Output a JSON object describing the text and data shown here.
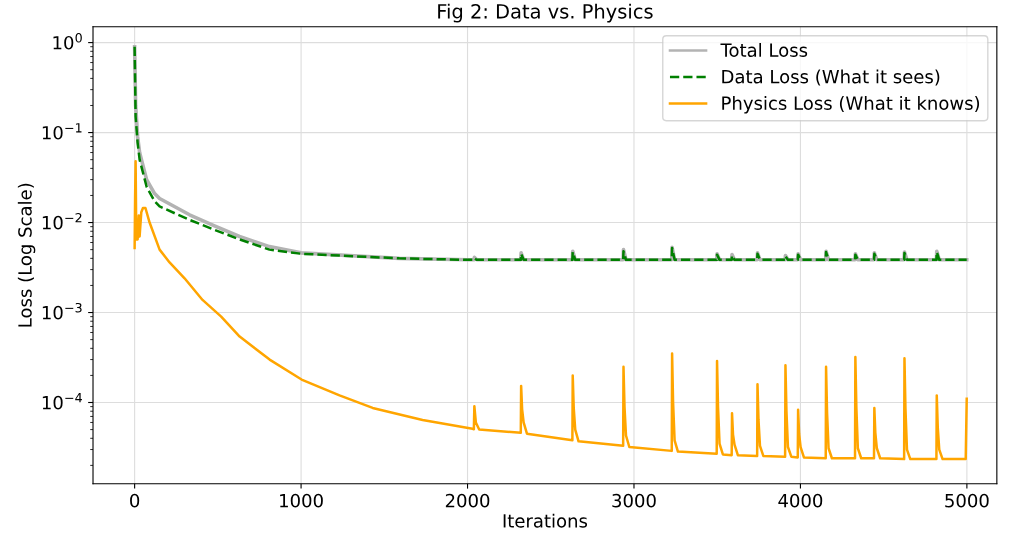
{
  "chart_data": {
    "type": "line",
    "title": "Fig 2: Data vs. Physics",
    "xlabel": "Iterations",
    "ylabel": "Loss (Log Scale)",
    "log": "y",
    "grid": true,
    "legend": "top right",
    "xlim": [
      -250,
      5180
    ],
    "xticks": [
      0,
      1000,
      2000,
      3000,
      4000,
      5000
    ],
    "ylim": [
      1.25e-05,
      1.5
    ],
    "yticks": [
      {
        "value": 0.0001,
        "label": "10$^{−4}$"
      },
      {
        "value": 0.001,
        "label": "10$^{−3}$"
      },
      {
        "value": 0.01,
        "label": "10$^{−2}$"
      },
      {
        "value": 0.1,
        "label": "10$^{−1}$"
      },
      {
        "value": 1,
        "label": "10$^{0}$"
      }
    ],
    "series": [
      {
        "name": "Total Loss",
        "color": "#b3b3b3",
        "line_style": "solid",
        "x": [
          0,
          6,
          18,
          30,
          72,
          120,
          150,
          330,
          480,
          630,
          810,
          1000,
          1590,
          2000,
          2039,
          2041,
          2056,
          2320,
          2322,
          2337,
          2630,
          2632,
          2647,
          2935,
          2937,
          2952,
          3227,
          3229,
          3244,
          3497,
          3499,
          3514,
          3587,
          3589,
          3604,
          3740,
          3742,
          3757,
          3908,
          3910,
          3925,
          3984,
          3986,
          4001,
          4152,
          4154,
          4169,
          4328,
          4330,
          4345,
          4442,
          4444,
          4459,
          4623,
          4625,
          4640,
          4817,
          4819,
          4834,
          4999
        ],
        "values": [
          0.9,
          0.2,
          0.09,
          0.06,
          0.03,
          0.021,
          0.0185,
          0.0122,
          0.0092,
          0.007,
          0.0054,
          0.0046,
          0.004,
          0.00386,
          0.00386,
          0.0041,
          0.00386,
          0.00386,
          0.0046,
          0.00386,
          0.00386,
          0.0048,
          0.00386,
          0.00386,
          0.005,
          0.00386,
          0.00386,
          0.0053,
          0.00386,
          0.00386,
          0.0045,
          0.00386,
          0.00386,
          0.0044,
          0.00386,
          0.00386,
          0.0046,
          0.00386,
          0.00386,
          0.0043,
          0.00386,
          0.00386,
          0.0045,
          0.00386,
          0.00386,
          0.0048,
          0.00386,
          0.00386,
          0.0045,
          0.00386,
          0.00386,
          0.0046,
          0.00386,
          0.00386,
          0.0047,
          0.00386,
          0.00386,
          0.0048,
          0.00386,
          0.00386
        ]
      },
      {
        "name": "Data Loss (What it sees)",
        "color": "#008000",
        "line_style": "dashed",
        "x": [
          0,
          6,
          18,
          30,
          72,
          120,
          150,
          330,
          480,
          630,
          810,
          1000,
          1590,
          2000,
          2039,
          2041,
          2056,
          2320,
          2322,
          2337,
          2630,
          2632,
          2647,
          2935,
          2937,
          2952,
          3227,
          3229,
          3244,
          3497,
          3499,
          3514,
          3587,
          3589,
          3604,
          3740,
          3742,
          3757,
          3908,
          3910,
          3925,
          3984,
          3986,
          4001,
          4152,
          4154,
          4169,
          4328,
          4330,
          4345,
          4442,
          4444,
          4459,
          4623,
          4625,
          4640,
          4817,
          4819,
          4834,
          4999
        ],
        "values": [
          0.9,
          0.15,
          0.077,
          0.05,
          0.025,
          0.0172,
          0.0151,
          0.0107,
          0.0083,
          0.0065,
          0.005,
          0.0045,
          0.004,
          0.00385,
          0.00385,
          0.004,
          0.00385,
          0.00385,
          0.0045,
          0.00385,
          0.00385,
          0.0047,
          0.00385,
          0.00385,
          0.0048,
          0.00385,
          0.00385,
          0.0052,
          0.00385,
          0.00385,
          0.0044,
          0.00385,
          0.00385,
          0.0043,
          0.00385,
          0.00385,
          0.0045,
          0.00385,
          0.00385,
          0.0042,
          0.00385,
          0.00385,
          0.0044,
          0.00385,
          0.00385,
          0.0047,
          0.00385,
          0.00385,
          0.0044,
          0.00385,
          0.00385,
          0.0045,
          0.00385,
          0.00385,
          0.0046,
          0.00385,
          0.00385,
          0.0047,
          0.00385,
          0.00385
        ]
      },
      {
        "name": "Physics Loss (What it knows)",
        "color": "#ffa500",
        "line_style": "solid",
        "x": [
          0,
          3,
          6,
          10,
          14,
          18,
          25,
          30,
          40,
          50,
          65,
          90,
          150,
          210,
          300,
          408,
          520,
          631,
          811,
          1003,
          1231,
          1430,
          1730,
          2030,
          2038,
          2041,
          2050,
          2070,
          2320,
          2322,
          2328,
          2337,
          2357,
          2630,
          2632,
          2638,
          2647,
          2667,
          2935,
          2937,
          2943,
          2952,
          2972,
          3227,
          3229,
          3235,
          3244,
          3264,
          3497,
          3499,
          3505,
          3514,
          3534,
          3587,
          3589,
          3595,
          3604,
          3624,
          3740,
          3742,
          3748,
          3757,
          3777,
          3908,
          3910,
          3916,
          3925,
          3945,
          3984,
          3986,
          3992,
          4001,
          4021,
          4152,
          4154,
          4160,
          4169,
          4189,
          4328,
          4330,
          4336,
          4345,
          4365,
          4442,
          4444,
          4450,
          4459,
          4479,
          4623,
          4625,
          4631,
          4640,
          4660,
          4817,
          4819,
          4825,
          4834,
          4854,
          4993,
          4999
        ],
        "values": [
          0.0052,
          0.02,
          0.048,
          0.0065,
          0.009,
          0.0065,
          0.012,
          0.007,
          0.013,
          0.0145,
          0.0145,
          0.01,
          0.005,
          0.0036,
          0.0024,
          0.00138,
          0.0009,
          0.00054,
          0.0003,
          0.00018,
          0.00012,
          8.7e-05,
          6.4e-05,
          5.1e-05,
          5.05e-05,
          9.1e-05,
          6e-05,
          5e-05,
          4.6e-05,
          0.000153,
          8.4e-05,
          6e-05,
          4.5e-05,
          3.8e-05,
          0.0002,
          8.7e-05,
          5e-05,
          3.7e-05,
          3.3e-05,
          0.00025,
          9e-05,
          4.3e-05,
          3.2e-05,
          2.9e-05,
          0.00035,
          0.0001,
          3.8e-05,
          2.85e-05,
          2.7e-05,
          0.00029,
          8.8e-05,
          3.5e-05,
          2.65e-05,
          2.6e-05,
          7.6e-05,
          4.4e-05,
          3.4e-05,
          2.6e-05,
          2.55e-05,
          0.00016,
          6.4e-05,
          3.3e-05,
          2.55e-05,
          2.5e-05,
          0.00026,
          8e-05,
          3.2e-05,
          2.5e-05,
          2.45e-05,
          8.3e-05,
          4.5e-05,
          3.2e-05,
          2.45e-05,
          2.4e-05,
          0.00025,
          7.7e-05,
          3.1e-05,
          2.4e-05,
          2.4e-05,
          0.00032,
          8.8e-05,
          3.1e-05,
          2.4e-05,
          2.4e-05,
          8.7e-05,
          4.6e-05,
          3.1e-05,
          2.4e-05,
          2.35e-05,
          0.00031,
          8.5e-05,
          3e-05,
          2.35e-05,
          2.35e-05,
          0.00012,
          5.3e-05,
          3e-05,
          2.35e-05,
          2.35e-05,
          0.00011
        ]
      }
    ]
  }
}
